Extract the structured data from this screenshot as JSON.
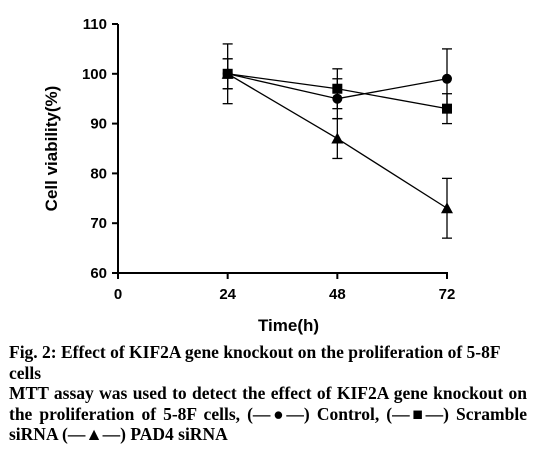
{
  "chart_data": {
    "type": "line",
    "xlabel": "Time(h)",
    "ylabel": "Cell viability(%)",
    "xlim": [
      0,
      72
    ],
    "ylim": [
      60,
      110
    ],
    "x_ticks": [
      0,
      24,
      48,
      72
    ],
    "y_ticks": [
      60,
      70,
      80,
      90,
      100,
      110
    ],
    "grid": false,
    "legend": "none",
    "series": [
      {
        "marker": "circle",
        "color": "#000000",
        "x": [
          24,
          48,
          72
        ],
        "y": [
          100,
          95,
          99
        ],
        "error": [
          3,
          4,
          6
        ]
      },
      {
        "marker": "square",
        "color": "#000000",
        "x": [
          24,
          48,
          72
        ],
        "y": [
          100,
          97,
          93
        ],
        "error": [
          3,
          4,
          3
        ]
      },
      {
        "marker": "triangle",
        "color": "#000000",
        "x": [
          24,
          48,
          72
        ],
        "y": [
          100,
          87,
          73
        ],
        "error": [
          6,
          4,
          6
        ]
      }
    ]
  },
  "caption": {
    "title": "Fig. 2: Effect of KIF2A gene knockout on the proliferation of 5-8F cells",
    "description": "MTT assay was used to detect the effect of KIF2A gene knockout on the proliferation of 5-8F cells, (—●—) Control, (—■—) Scramble siRNA (—▲—) PAD4 siRNA"
  }
}
